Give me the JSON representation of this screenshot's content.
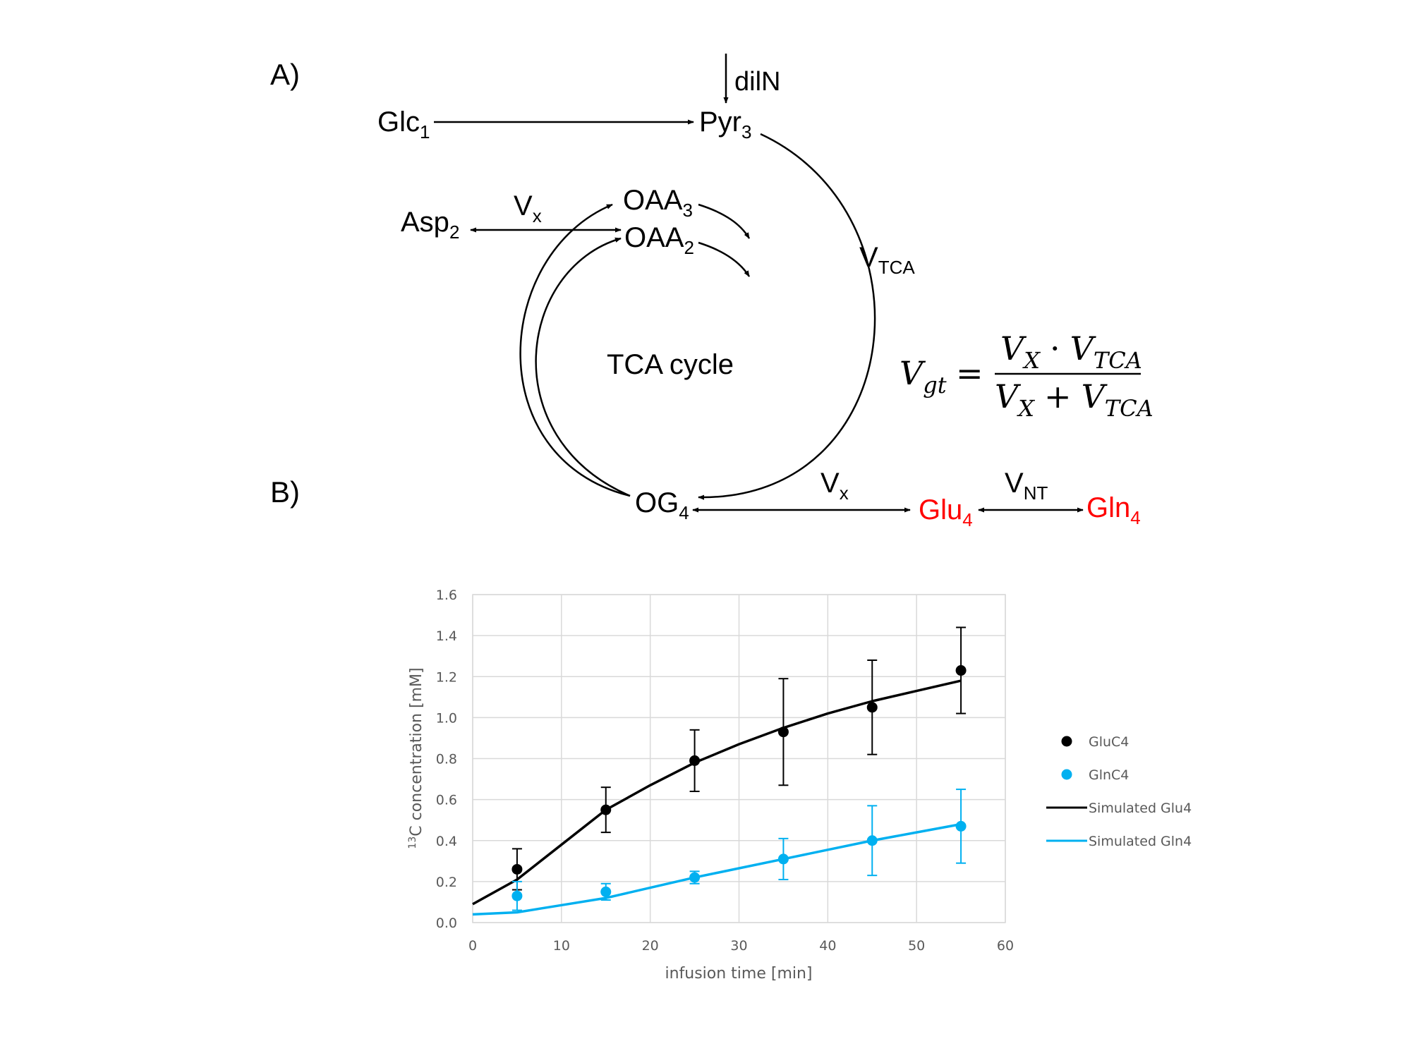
{
  "panel_labels": {
    "a": "A)",
    "b": "B)"
  },
  "diagram": {
    "glc": {
      "base": "Glc",
      "sub": "1"
    },
    "pyr": {
      "base": "Pyr",
      "sub": "3"
    },
    "diln": "dilN",
    "asp": {
      "base": "Asp",
      "sub": "2"
    },
    "oaa3": {
      "base": "OAA",
      "sub": "3"
    },
    "oaa2": {
      "base": "OAA",
      "sub": "2"
    },
    "vx_top": {
      "base": "V",
      "sub": "x"
    },
    "vtca": {
      "base": "V",
      "sub": "TCA"
    },
    "tca_cycle": "TCA cycle",
    "og": {
      "base": "OG",
      "sub": "4"
    },
    "vx_bottom": {
      "base": "V",
      "sub": "x"
    },
    "glu": {
      "base": "Glu",
      "sub": "4"
    },
    "vnt": {
      "base": "V",
      "sub": "NT"
    },
    "gln": {
      "base": "Gln",
      "sub": "4"
    },
    "colors": {
      "highlight": "#ff0000",
      "line": "#000000"
    }
  },
  "equation": {
    "lhs_base": "V",
    "lhs_sub": "gt",
    "equals": "=",
    "num_a": "V",
    "num_a_sub": "X",
    "num_op": "·",
    "num_b": "V",
    "num_b_sub": "TCA",
    "den_a": "V",
    "den_a_sub": "X",
    "den_op": "+",
    "den_b": "V",
    "den_b_sub": "TCA"
  },
  "chart_data": {
    "type": "scatter",
    "xlabel": "infusion time [min]",
    "ylabel_sup": "13",
    "ylabel_rest": "C concentration [mM]",
    "xlim": [
      0,
      60
    ],
    "ylim": [
      0,
      1.6
    ],
    "xticks": [
      0,
      10,
      20,
      30,
      40,
      50,
      60
    ],
    "yticks": [
      0.0,
      0.2,
      0.4,
      0.6,
      0.8,
      1.0,
      1.2,
      1.4,
      1.6
    ],
    "xtick_labels": [
      "0",
      "10",
      "20",
      "30",
      "40",
      "50",
      "60"
    ],
    "ytick_labels": [
      "0.0",
      "0.2",
      "0.4",
      "0.6",
      "0.8",
      "1.0",
      "1.2",
      "1.4",
      "1.6"
    ],
    "grid": true,
    "legend_position": "right",
    "series": [
      {
        "name": "GluC4",
        "kind": "points",
        "color": "#000000",
        "x": [
          5,
          15,
          25,
          35,
          45,
          55
        ],
        "y": [
          0.26,
          0.55,
          0.79,
          0.93,
          1.05,
          1.23
        ],
        "err": [
          0.1,
          0.11,
          0.15,
          0.26,
          0.23,
          0.21
        ]
      },
      {
        "name": "GlnC4",
        "kind": "points",
        "color": "#00b0f0",
        "x": [
          5,
          15,
          25,
          35,
          45,
          55
        ],
        "y": [
          0.13,
          0.15,
          0.22,
          0.31,
          0.4,
          0.47
        ],
        "err": [
          0.07,
          0.04,
          0.03,
          0.1,
          0.17,
          0.18
        ]
      },
      {
        "name": "Simulated Glu4",
        "kind": "line",
        "color": "#000000",
        "x": [
          0,
          5,
          10,
          15,
          20,
          25,
          30,
          35,
          40,
          45,
          50,
          55
        ],
        "y": [
          0.09,
          0.21,
          0.38,
          0.55,
          0.67,
          0.78,
          0.87,
          0.95,
          1.02,
          1.08,
          1.13,
          1.18
        ]
      },
      {
        "name": "Simulated Gln4",
        "kind": "line",
        "color": "#00b0f0",
        "x": [
          0,
          5,
          10,
          15,
          20,
          25,
          30,
          35,
          40,
          45,
          50,
          55
        ],
        "y": [
          0.04,
          0.05,
          0.085,
          0.12,
          0.17,
          0.22,
          0.265,
          0.31,
          0.355,
          0.4,
          0.44,
          0.48
        ]
      }
    ]
  }
}
